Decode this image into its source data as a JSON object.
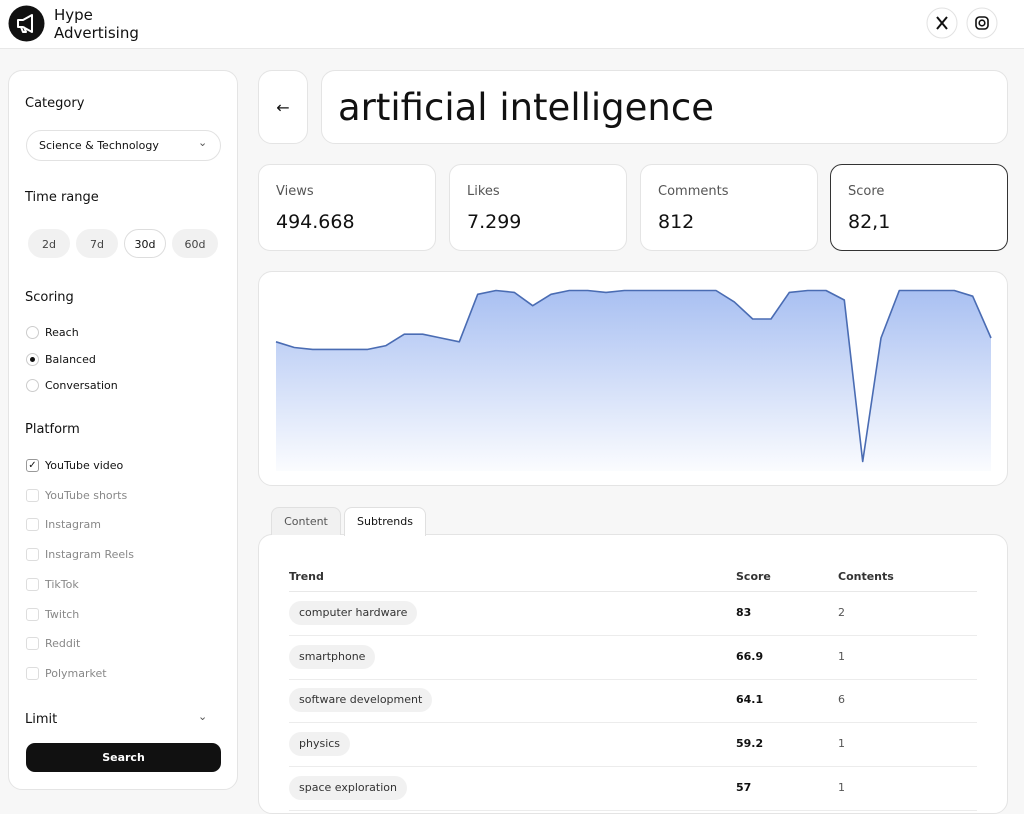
{
  "header": {
    "brand": [
      "Hype",
      "Advertising"
    ]
  },
  "sidebar": {
    "category": {
      "label": "Category",
      "value": "Science & Technology"
    },
    "time_range": {
      "label": "Time range",
      "options": [
        "2d",
        "7d",
        "30d",
        "60d"
      ],
      "selected": 2
    },
    "scoring": {
      "label": "Scoring",
      "options": [
        "Reach",
        "Balanced",
        "Conversation"
      ],
      "selected": 1
    },
    "platform": {
      "label": "Platform",
      "options": [
        {
          "label": "YouTube video",
          "checked": true
        },
        {
          "label": "YouTube shorts",
          "checked": false
        },
        {
          "label": "Instagram",
          "checked": false
        },
        {
          "label": "Instagram Reels",
          "checked": false
        },
        {
          "label": "TikTok",
          "checked": false
        },
        {
          "label": "Twitch",
          "checked": false
        },
        {
          "label": "Reddit",
          "checked": false
        },
        {
          "label": "Polymarket",
          "checked": false
        }
      ]
    },
    "limit": {
      "label": "Limit"
    },
    "search_button": "Search"
  },
  "query": "artificial intelligence",
  "stats": [
    {
      "label": "Views",
      "value": "494.668"
    },
    {
      "label": "Likes",
      "value": "7.299"
    },
    {
      "label": "Comments",
      "value": "812"
    },
    {
      "label": "Score",
      "value": "82,1"
    }
  ],
  "chart_data": {
    "type": "area",
    "color": "#4a6cb3",
    "values": [
      68,
      65,
      64,
      64,
      64,
      64,
      66,
      72,
      72,
      70,
      68,
      93,
      95,
      94,
      87,
      93,
      95,
      95,
      94,
      95,
      95,
      95,
      95,
      95,
      95,
      89,
      80,
      80,
      94,
      95,
      95,
      90,
      5,
      70,
      95,
      95,
      95,
      95,
      92,
      70
    ],
    "ylim": [
      0,
      100
    ]
  },
  "tabs": {
    "items": [
      "Content",
      "Subtrends"
    ],
    "selected": 1
  },
  "table": {
    "columns": [
      "Trend",
      "Score",
      "Contents"
    ],
    "rows": [
      [
        "computer hardware",
        83,
        2
      ],
      [
        "smartphone",
        66.9,
        1
      ],
      [
        "software development",
        64.1,
        6
      ],
      [
        "physics",
        59.2,
        1
      ],
      [
        "space exploration",
        57,
        1
      ]
    ]
  }
}
